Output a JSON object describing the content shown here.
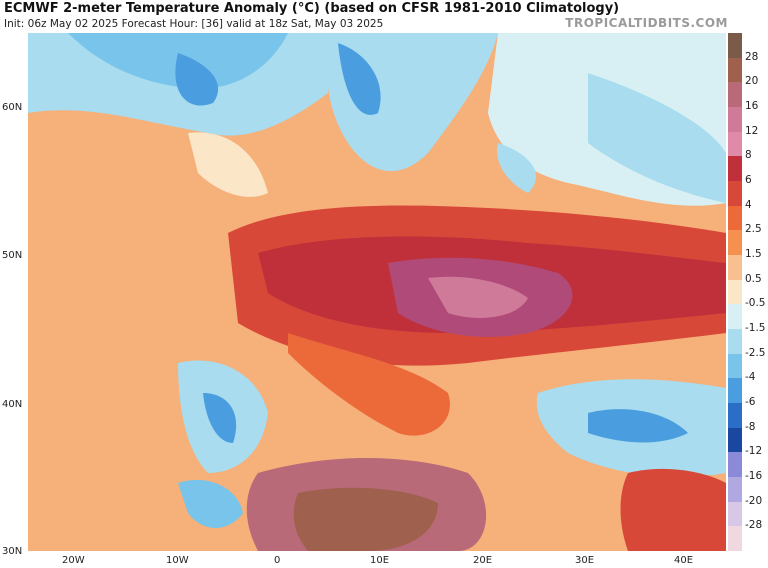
{
  "header": {
    "title": "ECMWF 2-meter Temperature Anomaly (°C) (based on CFSR 1981-2010 Climatology)",
    "subtitle": "Init: 06z May 02 2025   Forecast Hour: [36]   valid at 18z Sat, May 03 2025",
    "brand": "TROPICALTIDBITS.COM"
  },
  "axes": {
    "lat_labels": [
      "60N",
      "50N",
      "40N",
      "30N"
    ],
    "lon_labels": [
      "20W",
      "10W",
      "0",
      "10E",
      "20E",
      "30E",
      "40E"
    ]
  },
  "colorbar": {
    "labels": [
      "28",
      "20",
      "16",
      "12",
      "8",
      "6",
      "4",
      "2.5",
      "1.5",
      "0.5",
      "-0.5",
      "-1.5",
      "-2.5",
      "-4",
      "-6",
      "-8",
      "-12",
      "-16",
      "-20",
      "-28"
    ],
    "colors": [
      "#7a5a48",
      "#a0604e",
      "#b86a78",
      "#d07a9a",
      "#e08aaa",
      "#c0303a",
      "#d84838",
      "#ec6a3a",
      "#f59050",
      "#f8c090",
      "#fbe6c8",
      "#d8f0f4",
      "#a8dcee",
      "#78c4ea",
      "#4a9ee0",
      "#2a6ec8",
      "#1a48a0",
      "#8a8ad8",
      "#b0a8e0",
      "#d8c8e8",
      "#f0d8e0"
    ]
  },
  "colors": {
    "ocean_base": "#f6b07a",
    "hot_core": "#a84a78",
    "cold_blue": "#4a9ee0"
  }
}
